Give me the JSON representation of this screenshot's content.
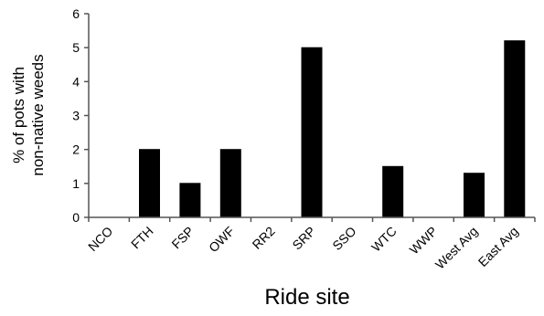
{
  "chart_data": {
    "type": "bar",
    "title": "",
    "xlabel": "Ride site",
    "ylabel_lines": [
      "% of pots with",
      "non-native weeds"
    ],
    "categories": [
      "NCO",
      "FTH",
      "FSP",
      "OWF",
      "RR2",
      "SRP",
      "SSO",
      "WTC",
      "WWP",
      "West Avg",
      "East Avg"
    ],
    "values": [
      0,
      2.0,
      1.0,
      2.0,
      0,
      5.0,
      0,
      1.5,
      0,
      1.3,
      5.2
    ],
    "ylim": [
      0,
      6
    ],
    "yticks": [
      0,
      1,
      2,
      3,
      4,
      5,
      6
    ],
    "grid": false,
    "legend": "none",
    "bar_color": "#000000"
  }
}
